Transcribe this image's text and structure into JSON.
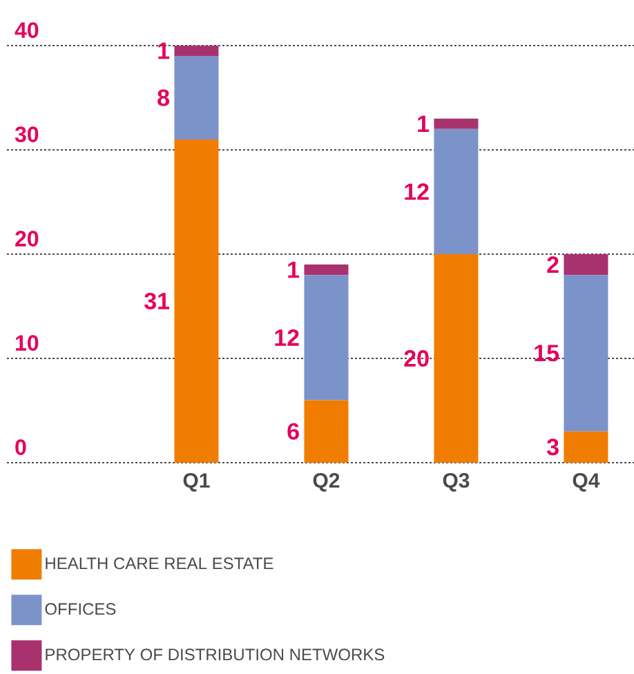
{
  "chart_data": {
    "type": "bar",
    "stacked": true,
    "categories": [
      "Q1",
      "Q2",
      "Q3",
      "Q4"
    ],
    "series": [
      {
        "name": "HEALTH CARE REAL ESTATE",
        "color": "#f07d00",
        "values": [
          31,
          6,
          20,
          3
        ]
      },
      {
        "name": "OFFICES",
        "color": "#7b93c9",
        "values": [
          8,
          12,
          12,
          15
        ]
      },
      {
        "name": "PROPERTY OF DISTRIBUTION NETWORKS",
        "color": "#a8326e",
        "values": [
          1,
          1,
          1,
          2
        ]
      }
    ],
    "ylim": [
      0,
      40
    ],
    "yticks": [
      0,
      10,
      20,
      30,
      40
    ],
    "grid": "y",
    "legend": "bottom",
    "data_labels": true
  }
}
